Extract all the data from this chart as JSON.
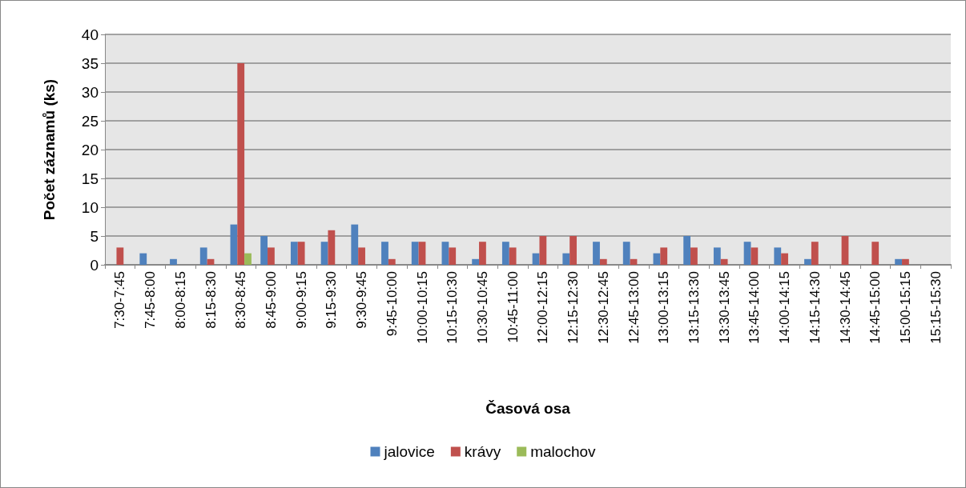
{
  "chart_data": {
    "type": "bar",
    "xlabel": "Časová osa",
    "ylabel": "Počet záznamů (ks)",
    "categories": [
      "7:30-7:45",
      "7:45-8:00",
      "8:00-8:15",
      "8:15-8:30",
      "8:30-8:45",
      "8:45-9:00",
      "9:00-9:15",
      "9:15-9:30",
      "9:30-9:45",
      "9:45-10:00",
      "10:00-10:15",
      "10:15-10:30",
      "10:30-10:45",
      "10:45-11:00",
      "12:00-12:15",
      "12:15-12:30",
      "12:30-12:45",
      "12:45-13:00",
      "13:00-13:15",
      "13:15-13:30",
      "13:30-13:45",
      "13:45-14:00",
      "14:00-14:15",
      "14:15-14:30",
      "14:30-14:45",
      "14:45-15:00",
      "15:00-15:15",
      "15:15-15:30"
    ],
    "series": [
      {
        "name": "jalovice",
        "color": "#4f81bd",
        "values": [
          0,
          2,
          1,
          3,
          7,
          5,
          4,
          4,
          7,
          4,
          4,
          4,
          1,
          4,
          2,
          2,
          4,
          4,
          2,
          5,
          3,
          4,
          3,
          1,
          0,
          0,
          1,
          0
        ]
      },
      {
        "name": "krávy",
        "color": "#c0504d",
        "values": [
          3,
          0,
          0,
          1,
          35,
          3,
          4,
          6,
          3,
          1,
          4,
          3,
          4,
          3,
          5,
          5,
          1,
          1,
          3,
          3,
          1,
          3,
          2,
          4,
          5,
          4,
          1,
          0
        ]
      },
      {
        "name": "malochov",
        "color": "#9bbb59",
        "values": [
          0,
          0,
          0,
          0,
          2,
          0,
          0,
          0,
          0,
          0,
          0,
          0,
          0,
          0,
          0,
          0,
          0,
          0,
          0,
          0,
          0,
          0,
          0,
          0,
          0,
          0,
          0,
          0
        ]
      }
    ],
    "ylim": [
      0,
      40
    ],
    "yticks": [
      0,
      5,
      10,
      15,
      20,
      25,
      30,
      35,
      40
    ],
    "grid": "y",
    "legend": "bottom"
  }
}
